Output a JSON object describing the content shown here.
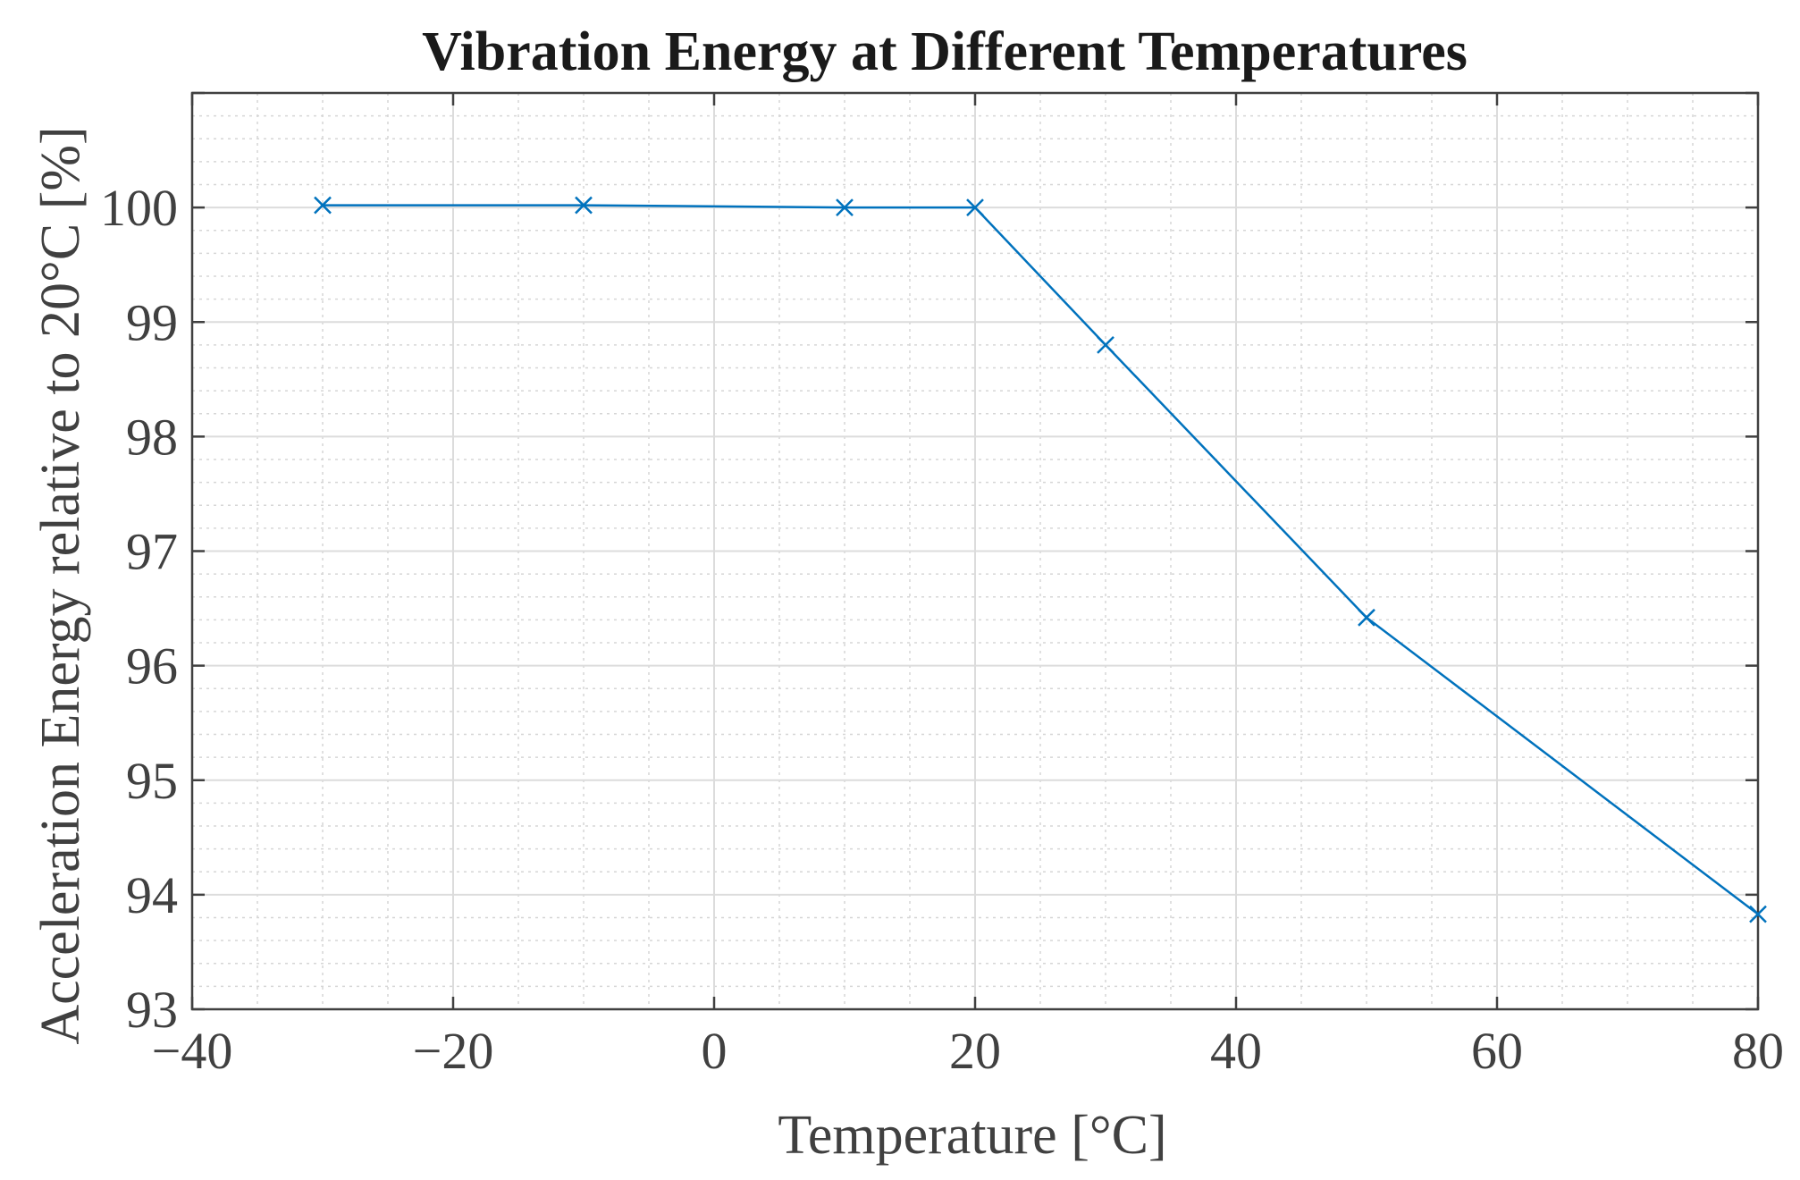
{
  "chart_data": {
    "type": "line",
    "title": "Vibration Energy at Different Temperatures",
    "xlabel": "Temperature [°C]",
    "ylabel": "Acceleration Energy relative to 20°C [%]",
    "xlim": [
      -40,
      80
    ],
    "ylim": [
      93,
      101
    ],
    "xticks": [
      -40,
      -20,
      0,
      20,
      40,
      60,
      80
    ],
    "xtick_labels": [
      "−40",
      "−20",
      "0",
      "20",
      "40",
      "60",
      "80"
    ],
    "yticks": [
      93,
      94,
      95,
      96,
      97,
      98,
      99,
      100
    ],
    "ytick_labels": [
      "93",
      "94",
      "95",
      "96",
      "97",
      "98",
      "99",
      "100"
    ],
    "grid": true,
    "minor_grid": true,
    "series": [
      {
        "name": "Acceleration Energy",
        "color": "#0072BD",
        "marker": "x",
        "x": [
          -30,
          -10,
          10,
          20,
          30,
          50,
          80
        ],
        "y": [
          100.02,
          100.02,
          100.0,
          100.0,
          98.8,
          96.42,
          93.83
        ]
      }
    ]
  }
}
